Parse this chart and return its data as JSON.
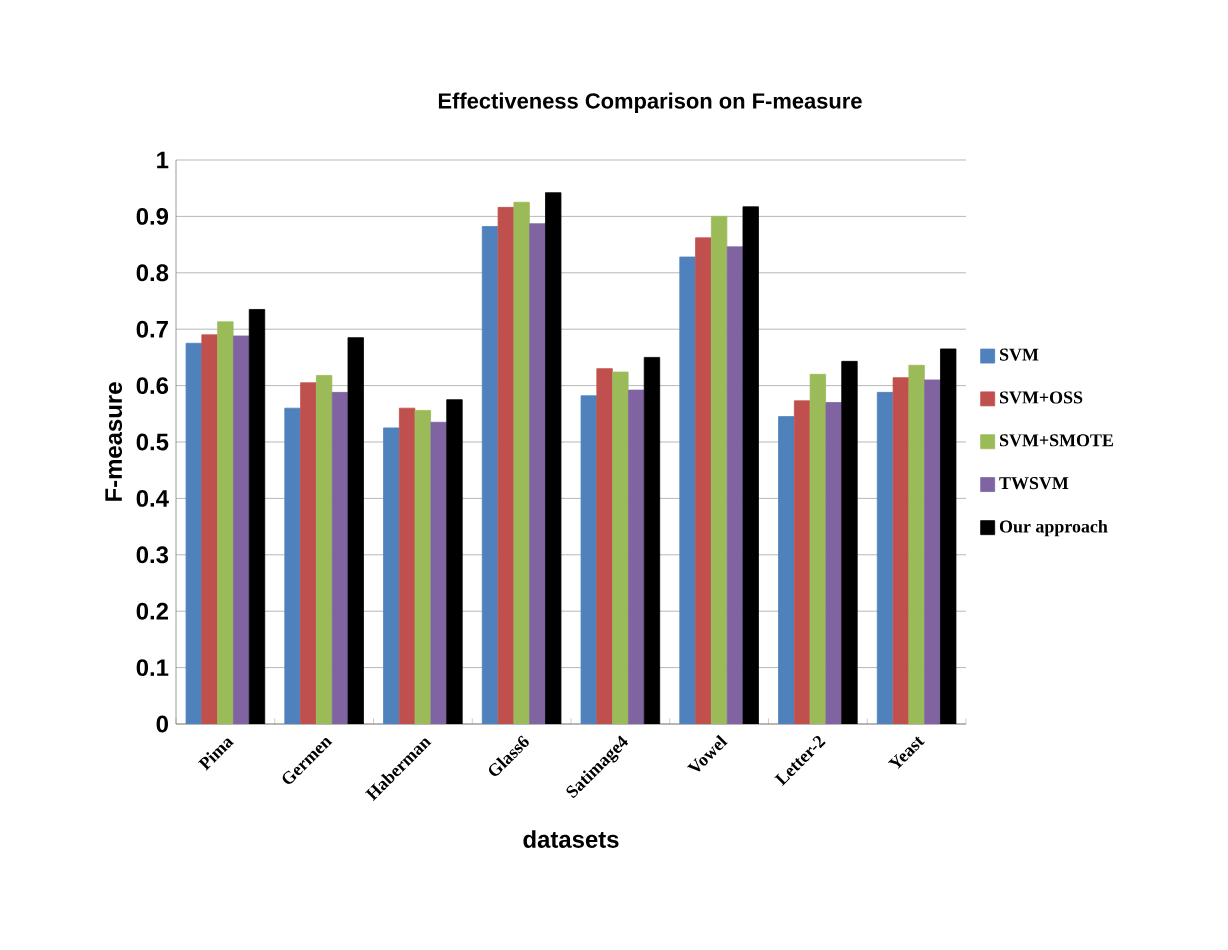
{
  "chart_data": {
    "type": "bar",
    "title": "Effectiveness Comparison on F-measure",
    "xlabel": "datasets",
    "ylabel": "F-measure",
    "categories": [
      "Pima",
      "Germen",
      "Haberman",
      "Glass6",
      "Satimage4",
      "Vowel",
      "Letter-2",
      "Yeast"
    ],
    "series": [
      {
        "name": "SVM",
        "color": "#4f81bd",
        "values": [
          0.675,
          0.56,
          0.525,
          0.882,
          0.582,
          0.828,
          0.545,
          0.588
        ]
      },
      {
        "name": "SVM+OSS",
        "color": "#c0504d",
        "values": [
          0.69,
          0.605,
          0.56,
          0.916,
          0.63,
          0.862,
          0.573,
          0.614
        ]
      },
      {
        "name": "SVM+SMOTE",
        "color": "#9bbb59",
        "values": [
          0.713,
          0.618,
          0.556,
          0.925,
          0.624,
          0.9,
          0.62,
          0.636
        ]
      },
      {
        "name": "TWSVM",
        "color": "#8064a2",
        "values": [
          0.688,
          0.588,
          0.535,
          0.887,
          0.592,
          0.846,
          0.57,
          0.61
        ]
      },
      {
        "name": "Our approach",
        "color": "#000000",
        "values": [
          0.735,
          0.685,
          0.575,
          0.942,
          0.65,
          0.917,
          0.643,
          0.665
        ]
      }
    ],
    "ylim": [
      0,
      1
    ],
    "yticks": [
      0,
      0.1,
      0.2,
      0.3,
      0.4,
      0.5,
      0.6,
      0.7,
      0.8,
      0.9,
      1
    ],
    "grid": "y",
    "legend": "right"
  }
}
